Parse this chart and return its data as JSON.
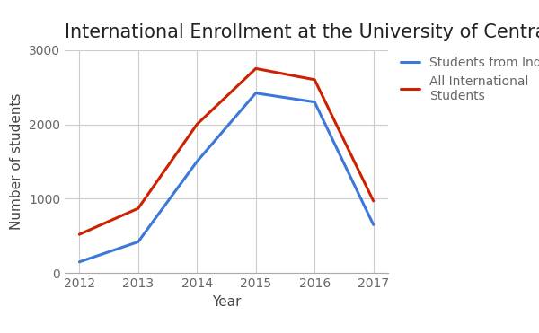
{
  "title": "International Enrollment at the University of Central Missouri",
  "xlabel": "Year",
  "ylabel": "Number of students",
  "years": [
    2012,
    2013,
    2014,
    2015,
    2016,
    2017
  ],
  "india_students": [
    150,
    420,
    1500,
    2420,
    2300,
    650
  ],
  "all_international": [
    520,
    870,
    2000,
    2750,
    2600,
    970
  ],
  "india_color": "#3c78d8",
  "international_color": "#cc2200",
  "india_label": "Students from India",
  "international_label": "All International\nStudents",
  "ylim": [
    0,
    3000
  ],
  "yticks": [
    0,
    1000,
    2000,
    3000
  ],
  "background_color": "#ffffff",
  "grid_color": "#cccccc",
  "title_fontsize": 15,
  "axis_label_fontsize": 11,
  "tick_fontsize": 10,
  "legend_fontsize": 10,
  "line_width": 2.2
}
